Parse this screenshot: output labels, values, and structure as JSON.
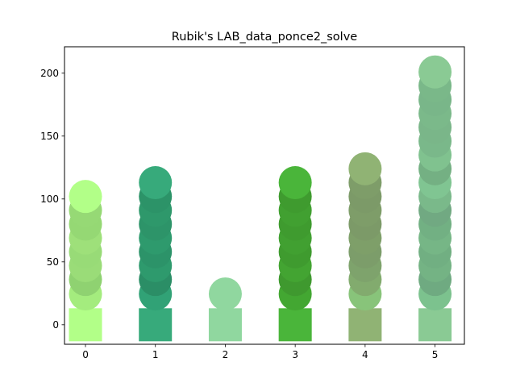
{
  "chart_data": {
    "type": "scatter",
    "title": "Rubik's LAB_data_ponce2_solve",
    "xlabel": "",
    "ylabel": "",
    "xlim": [
      -0.3,
      5.42
    ],
    "ylim": [
      -15.5,
      221
    ],
    "x_ticks": [
      0,
      1,
      2,
      3,
      4,
      5
    ],
    "y_ticks": [
      0,
      50,
      100,
      150,
      200
    ],
    "grid": false,
    "legend": "none",
    "squares": [
      {
        "x": 0,
        "y": 0,
        "color": "#b2ff88"
      },
      {
        "x": 1,
        "y": 0,
        "color": "#37aa7b"
      },
      {
        "x": 2,
        "y": 0,
        "color": "#90d79f"
      },
      {
        "x": 3,
        "y": 0,
        "color": "#4ab53a"
      },
      {
        "x": 4,
        "y": 0,
        "color": "#90b374"
      },
      {
        "x": 5,
        "y": 0,
        "color": "#8aca94"
      }
    ],
    "series": [
      {
        "x": 0,
        "y": [
          24.5,
          36,
          47,
          58,
          69,
          80,
          91,
          102
        ],
        "colors": [
          "#a4ec7e",
          "#8fd271",
          "#9adc78",
          "#98db77",
          "#9ee07a",
          "#95d874",
          "#96d975",
          "#b2ff88"
        ]
      },
      {
        "x": 1,
        "y": [
          24.5,
          36,
          47,
          58,
          69,
          80,
          91,
          102,
          113
        ],
        "colors": [
          "#31a276",
          "#2b8e66",
          "#2e9a6d",
          "#2c9369",
          "#2e9a6d",
          "#2d9469",
          "#2e986b",
          "#2c9368",
          "#37aa7b"
        ]
      },
      {
        "x": 2,
        "y": [
          24.5
        ],
        "colors": [
          "#90d79f"
        ]
      },
      {
        "x": 3,
        "y": [
          24.5,
          36,
          47,
          58,
          69,
          80,
          91,
          102,
          113
        ],
        "colors": [
          "#43a732",
          "#3f992f",
          "#43a432",
          "#3f9b2f",
          "#41a031",
          "#3f9b2f",
          "#41a031",
          "#3f9b2f",
          "#4ab53a"
        ]
      },
      {
        "x": 4,
        "y": [
          24.5,
          36,
          47,
          58,
          69,
          80,
          91,
          102,
          113,
          124
        ],
        "colors": [
          "#88c47a",
          "#82ab6e",
          "#7ea36c",
          "#7c9d6a",
          "#7e9f69",
          "#7c9a68",
          "#7e9d69",
          "#7c9a68",
          "#7e9d69",
          "#90b374"
        ]
      },
      {
        "x": 5,
        "y": [
          24.5,
          36,
          47,
          58,
          69,
          80,
          91,
          102,
          113,
          124,
          135,
          146,
          157,
          168,
          179,
          190,
          201
        ],
        "colors": [
          "#7cc28e",
          "#6faa81",
          "#74b384",
          "#71af82",
          "#76b686",
          "#72b083",
          "#71a982",
          "#7ab98a",
          "#80c592",
          "#74b083",
          "#80c28f",
          "#7ab88a",
          "#7ab689",
          "#7bb98a",
          "#79b689",
          "#7ab889",
          "#8aca94"
        ]
      }
    ]
  }
}
